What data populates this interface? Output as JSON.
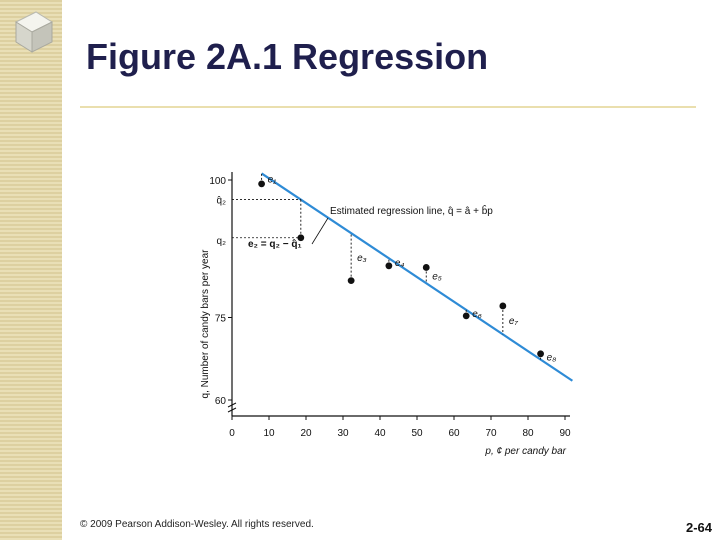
{
  "slide": {
    "title": "Figure 2A.1 Regression",
    "copyright": "© 2009 Pearson Addison-Wesley. All rights reserved.",
    "page_number": "2-64"
  },
  "colors": {
    "title": "#1f1f4d",
    "regression_line": "#2e8bd6",
    "points": "#111111",
    "side_strip": "#e9dfb6",
    "rule": "#eadfae"
  },
  "chart_data": {
    "type": "scatter",
    "xlabel": "p, ¢ per candy bar",
    "ylabel": "q, Number of candy bars per year",
    "xlim": [
      0,
      90
    ],
    "ylim": [
      60,
      100
    ],
    "x_ticks": [
      "0",
      "10",
      "20",
      "30",
      "40",
      "50",
      "60",
      "70",
      "80",
      "90"
    ],
    "y_ticks": [
      "60",
      "75",
      "100"
    ],
    "y_hat_labels": [
      "q̂₂",
      "q₂"
    ],
    "points": [
      {
        "x": 8,
        "y": 99.3
      },
      {
        "x": 18.6,
        "y": 89.5
      },
      {
        "x": 32.2,
        "y": 81.7
      },
      {
        "x": 42.4,
        "y": 84.4
      },
      {
        "x": 52.5,
        "y": 84.1
      },
      {
        "x": 63.3,
        "y": 75.3
      },
      {
        "x": 73.2,
        "y": 77.1
      },
      {
        "x": 83.4,
        "y": 68.4
      }
    ],
    "regression_line": {
      "x": [
        8,
        92
      ],
      "y": [
        101.2,
        63.5
      ]
    },
    "residual_labels": [
      "e₁",
      "e₃",
      "e₄",
      "e₅",
      "e₆",
      "e₇",
      "e₈"
    ],
    "annotations": {
      "line_label": "Estimated regression line, q̂ = â + b̂p",
      "residual_formula": "e₂ = q₂ − q̂₁"
    }
  }
}
